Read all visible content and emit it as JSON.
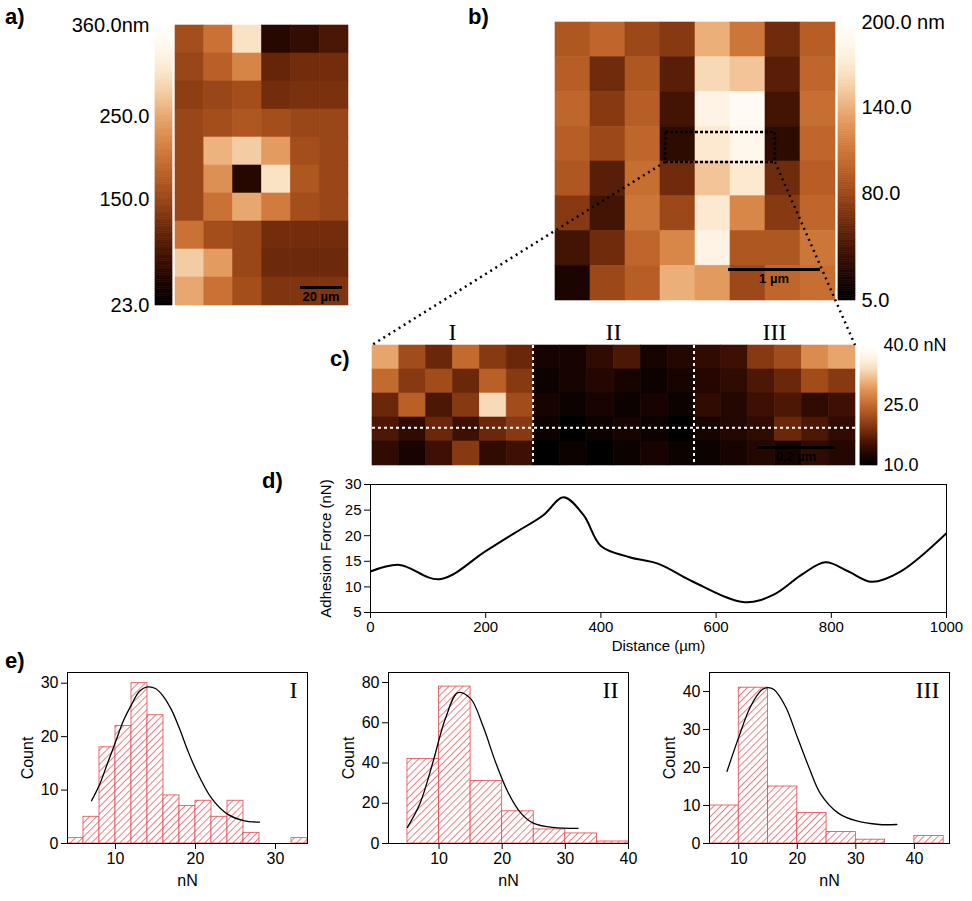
{
  "chart_data": [
    {
      "type": "heatmap",
      "panel": "a)",
      "scale_bar": "20 µm",
      "cells": [
        [
          160,
          200,
          300,
          60,
          70,
          90
        ],
        [
          150,
          180,
          220,
          110,
          120,
          120
        ],
        [
          140,
          150,
          160,
          120,
          125,
          125
        ],
        [
          150,
          160,
          170,
          160,
          150,
          150
        ],
        [
          150,
          260,
          280,
          240,
          160,
          150
        ],
        [
          150,
          230,
          60,
          300,
          170,
          150
        ],
        [
          150,
          200,
          250,
          210,
          160,
          150
        ],
        [
          200,
          160,
          150,
          120,
          120,
          120
        ],
        [
          280,
          240,
          150,
          115,
          115,
          115
        ],
        [
          250,
          200,
          160,
          130,
          130,
          130
        ]
      ],
      "colorbar": {
        "range": [
          23,
          360
        ],
        "ticks": [
          {
            "value": 360,
            "label": "360.0nm"
          },
          {
            "value": 250,
            "label": "250.0"
          },
          {
            "value": 150,
            "label": "150.0"
          },
          {
            "value": 23,
            "label": "23.0"
          }
        ]
      }
    },
    {
      "type": "heatmap",
      "panel": "b)",
      "scale_bar": "1 µm",
      "cells": [
        [
          90,
          100,
          80,
          70,
          140,
          110,
          60,
          95
        ],
        [
          95,
          60,
          90,
          50,
          160,
          150,
          50,
          100
        ],
        [
          100,
          70,
          95,
          40,
          180,
          190,
          40,
          105
        ],
        [
          95,
          80,
          100,
          30,
          170,
          185,
          30,
          100
        ],
        [
          90,
          50,
          105,
          60,
          150,
          170,
          60,
          95
        ],
        [
          70,
          40,
          110,
          80,
          170,
          120,
          70,
          100
        ],
        [
          40,
          60,
          100,
          120,
          180,
          90,
          90,
          110
        ],
        [
          20,
          80,
          95,
          140,
          130,
          80,
          100,
          105
        ]
      ],
      "colorbar": {
        "range": [
          5,
          200
        ],
        "ticks": [
          {
            "value": 200,
            "label": "200.0 nm"
          },
          {
            "value": 140,
            "label": "140.0"
          },
          {
            "value": 80,
            "label": "80.0"
          },
          {
            "value": 5,
            "label": "5.0"
          }
        ]
      }
    },
    {
      "type": "heatmap",
      "panel": "c)",
      "scale_bar": "0.2 µm",
      "regions": [
        "I",
        "II",
        "III"
      ],
      "cells": [
        [
          30,
          22,
          18,
          25,
          20,
          18,
          12,
          12,
          14,
          16,
          12,
          13,
          14,
          15,
          20,
          22,
          28,
          30
        ],
        [
          25,
          20,
          22,
          18,
          24,
          20,
          11,
          12,
          13,
          12,
          11,
          12,
          13,
          14,
          16,
          18,
          22,
          20
        ],
        [
          18,
          24,
          16,
          20,
          34,
          22,
          12,
          11,
          12,
          11,
          12,
          11,
          14,
          13,
          15,
          16,
          14,
          15
        ],
        [
          16,
          14,
          18,
          15,
          18,
          20,
          11,
          10,
          11,
          12,
          11,
          10,
          12,
          13,
          14,
          18,
          16,
          14
        ],
        [
          14,
          12,
          15,
          20,
          14,
          15,
          10,
          11,
          10,
          11,
          12,
          11,
          11,
          12,
          13,
          12,
          14,
          13
        ]
      ],
      "colorbar": {
        "range": [
          10,
          40
        ],
        "ticks": [
          {
            "value": 40,
            "label": "40.0 nN"
          },
          {
            "value": 25,
            "label": "25.0"
          },
          {
            "value": 10,
            "label": "10.0"
          }
        ]
      }
    },
    {
      "type": "line",
      "panel": "d)",
      "xlabel": "Distance (µm)",
      "ylabel": "Adhesion Force (nN)",
      "color": "#000000",
      "x": [
        0,
        50,
        120,
        200,
        250,
        300,
        335,
        370,
        400,
        450,
        500,
        560,
        650,
        700,
        750,
        790,
        830,
        870,
        920,
        1000
      ],
      "values": [
        13,
        14.3,
        11.5,
        17,
        20.5,
        24,
        27.5,
        24,
        18,
        15.8,
        14.5,
        11,
        7,
        8.5,
        12.5,
        14.8,
        13,
        11,
        13,
        20.5
      ],
      "xlim": [
        0,
        1000
      ],
      "xticks": [
        0,
        200,
        400,
        600,
        800,
        1000
      ],
      "ylim": [
        5,
        30
      ],
      "yticks": [
        5,
        10,
        15,
        20,
        25,
        30
      ]
    },
    {
      "type": "histogram",
      "panel": "e)",
      "title": "I",
      "xlabel": "nN",
      "ylabel": "Count",
      "color": "#e3474d",
      "bins": [
        4,
        6,
        8,
        10,
        12,
        14,
        16,
        18,
        20,
        22,
        24,
        26,
        28,
        30,
        32,
        34
      ],
      "counts": [
        1,
        5,
        18,
        22,
        30,
        24,
        9,
        7,
        8,
        5,
        8,
        2,
        0,
        0,
        1
      ],
      "fit": {
        "x": [
          7,
          8,
          9,
          10,
          11,
          12,
          13,
          14,
          15,
          16,
          17,
          18,
          19,
          20,
          22,
          24,
          26,
          28
        ],
        "values": [
          8,
          11,
          15,
          19,
          23,
          26,
          28.5,
          29.3,
          29,
          27.5,
          25,
          21.5,
          17.5,
          14,
          8.5,
          5.5,
          4.3,
          4
        ],
        "color": "#000000"
      },
      "xlim": [
        4,
        34
      ],
      "xticks": [
        10,
        20,
        30
      ],
      "ylim": [
        0,
        32
      ],
      "yticks": [
        0,
        10,
        20,
        30
      ]
    },
    {
      "type": "histogram",
      "title": "II",
      "xlabel": "nN",
      "ylabel": "Count",
      "color": "#e3474d",
      "bins": [
        5,
        10,
        15,
        20,
        25,
        30,
        35,
        40
      ],
      "counts": [
        42,
        78,
        31,
        16,
        7,
        5,
        1
      ],
      "fit": {
        "x": [
          5,
          7,
          9,
          11,
          13,
          15,
          17,
          19,
          21,
          23,
          25,
          28,
          32
        ],
        "values": [
          8,
          20,
          40,
          62,
          75,
          72,
          58,
          40,
          25,
          15,
          10,
          8,
          7.5
        ],
        "color": "#000000"
      },
      "xlim": [
        2,
        40
      ],
      "xticks": [
        10,
        20,
        30,
        40
      ],
      "ylim": [
        0,
        85
      ],
      "yticks": [
        0,
        20,
        40,
        60,
        80
      ]
    },
    {
      "type": "histogram",
      "title": "III",
      "xlabel": "nN",
      "ylabel": "Count",
      "color": "#e3474d",
      "bins": [
        5,
        10,
        15,
        20,
        25,
        30,
        35,
        40,
        45
      ],
      "counts": [
        10,
        41,
        15,
        8,
        3,
        1,
        0,
        2
      ],
      "fit": {
        "x": [
          8,
          10,
          12,
          14,
          15,
          16,
          18,
          20,
          22,
          24,
          27,
          30,
          34,
          37
        ],
        "values": [
          19,
          28,
          36,
          40.5,
          41,
          40.5,
          36,
          28,
          20,
          13,
          8,
          6,
          5,
          5
        ],
        "color": "#000000"
      },
      "xlim": [
        5,
        46
      ],
      "xticks": [
        10,
        20,
        30,
        40
      ],
      "ylim": [
        0,
        45
      ],
      "yticks": [
        0,
        10,
        20,
        30,
        40
      ]
    }
  ]
}
